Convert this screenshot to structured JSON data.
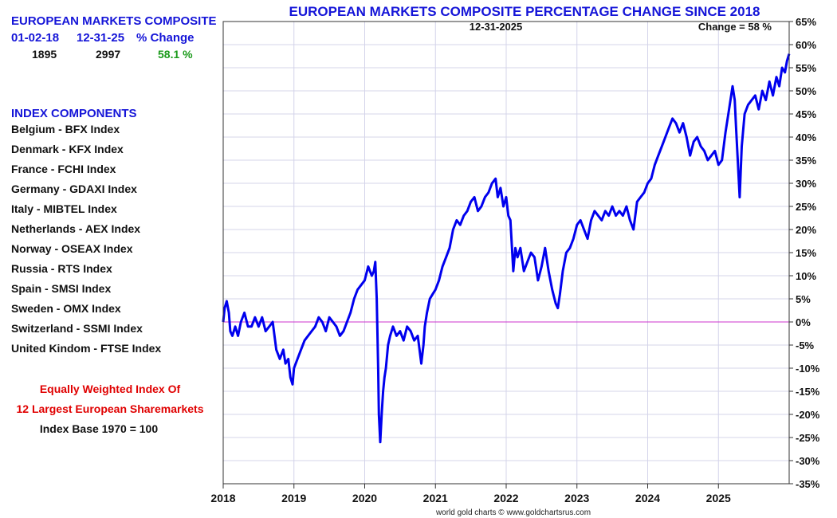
{
  "summary": {
    "title": "EUROPEAN MARKETS COMPOSITE",
    "headers": [
      "01-02-18",
      "12-31-25",
      "% Change"
    ],
    "values": [
      "1895",
      "2997",
      "58.1 %"
    ],
    "change_color": "#1a9a1a"
  },
  "components": {
    "title": "INDEX COMPONENTS",
    "items": [
      "Belgium - BFX Index",
      "Denmark - KFX Index",
      "France - FCHI Index",
      "Germany - GDAXI Index",
      "Italy - MIBTEL Index",
      "Netherlands - AEX Index",
      "Norway - OSEAX Index",
      "Russia - RTS Index",
      "Spain - SMSI Index",
      "Sweden - OMX Index",
      "Switzerland - SSMI Index",
      "United Kindom - FTSE Index"
    ]
  },
  "notes": {
    "line1": "Equally Weighted Index Of",
    "line2": "12 Largest European Sharemarkets",
    "line3": "Index Base 1970 = 100"
  },
  "chart_data": {
    "type": "line",
    "title": "EUROPEAN MARKETS COMPOSITE PERCENTAGE CHANGE SINCE 2018",
    "date_label": "12-31-2025",
    "change_label": "Change = 58 %",
    "credit": "world gold charts © www.goldchartsrus.com",
    "xlabel": "",
    "ylabel": "",
    "xlim": [
      2018.0,
      2026.0
    ],
    "ylim": [
      -35,
      65
    ],
    "x_ticks": [
      2018,
      2019,
      2020,
      2021,
      2022,
      2023,
      2024,
      2025
    ],
    "x_tick_labels": [
      "2018",
      "2019",
      "2020",
      "2021",
      "2022",
      "2023",
      "2024",
      "2025"
    ],
    "y_ticks": [
      -35,
      -30,
      -25,
      -20,
      -15,
      -10,
      -5,
      0,
      5,
      10,
      15,
      20,
      25,
      30,
      35,
      40,
      45,
      50,
      55,
      60,
      65
    ],
    "y_tick_labels": [
      "-35%",
      "-30%",
      "-25%",
      "-20%",
      "-15%",
      "-10%",
      "-5%",
      "0%",
      "5%",
      "10%",
      "15%",
      "20%",
      "25%",
      "30%",
      "35%",
      "40%",
      "45%",
      "50%",
      "55%",
      "60%",
      "65%"
    ],
    "grid": true,
    "zero_line": true,
    "line_color": "#0000ee",
    "zero_line_color": "#cc33cc",
    "series": [
      {
        "name": "European Markets Composite % Change",
        "x": [
          2018.0,
          2018.02,
          2018.05,
          2018.08,
          2018.1,
          2018.13,
          2018.17,
          2018.21,
          2018.25,
          2018.3,
          2018.35,
          2018.4,
          2018.45,
          2018.5,
          2018.55,
          2018.6,
          2018.65,
          2018.7,
          2018.75,
          2018.8,
          2018.85,
          2018.88,
          2018.92,
          2018.95,
          2018.98,
          2019.0,
          2019.05,
          2019.1,
          2019.15,
          2019.2,
          2019.25,
          2019.3,
          2019.35,
          2019.4,
          2019.45,
          2019.5,
          2019.55,
          2019.6,
          2019.65,
          2019.7,
          2019.75,
          2019.8,
          2019.85,
          2019.9,
          2019.95,
          2020.0,
          2020.05,
          2020.1,
          2020.13,
          2020.15,
          2020.17,
          2020.19,
          2020.2,
          2020.22,
          2020.24,
          2020.26,
          2020.28,
          2020.3,
          2020.33,
          2020.36,
          2020.4,
          2020.45,
          2020.5,
          2020.55,
          2020.6,
          2020.65,
          2020.7,
          2020.75,
          2020.8,
          2020.83,
          2020.85,
          2020.88,
          2020.92,
          2020.96,
          2021.0,
          2021.05,
          2021.1,
          2021.15,
          2021.2,
          2021.25,
          2021.3,
          2021.35,
          2021.4,
          2021.45,
          2021.5,
          2021.55,
          2021.6,
          2021.65,
          2021.7,
          2021.75,
          2021.8,
          2021.85,
          2021.88,
          2021.92,
          2021.96,
          2022.0,
          2022.03,
          2022.06,
          2022.1,
          2022.13,
          2022.16,
          2022.2,
          2022.25,
          2022.3,
          2022.35,
          2022.4,
          2022.45,
          2022.5,
          2022.55,
          2022.6,
          2022.65,
          2022.7,
          2022.73,
          2022.76,
          2022.8,
          2022.85,
          2022.9,
          2022.95,
          2023.0,
          2023.05,
          2023.1,
          2023.15,
          2023.2,
          2023.25,
          2023.3,
          2023.35,
          2023.4,
          2023.45,
          2023.5,
          2023.55,
          2023.6,
          2023.65,
          2023.7,
          2023.75,
          2023.8,
          2023.85,
          2023.9,
          2023.95,
          2024.0,
          2024.05,
          2024.1,
          2024.15,
          2024.2,
          2024.25,
          2024.3,
          2024.35,
          2024.4,
          2024.45,
          2024.5,
          2024.55,
          2024.6,
          2024.65,
          2024.7,
          2024.75,
          2024.8,
          2024.85,
          2024.9,
          2024.95,
          2025.0,
          2025.05,
          2025.1,
          2025.15,
          2025.2,
          2025.23,
          2025.25,
          2025.27,
          2025.3,
          2025.33,
          2025.37,
          2025.42,
          2025.47,
          2025.52,
          2025.57,
          2025.62,
          2025.67,
          2025.72,
          2025.77,
          2025.82,
          2025.86,
          2025.9,
          2025.94,
          2025.97,
          2026.0
        ],
        "values": [
          0,
          3,
          4.5,
          2,
          -2,
          -3,
          -1,
          -3,
          0,
          2,
          -1,
          -1,
          1,
          -1,
          1,
          -2,
          -1,
          0,
          -6,
          -8,
          -6,
          -9,
          -8,
          -12,
          -13.5,
          -10,
          -8,
          -6,
          -4,
          -3,
          -2,
          -1,
          1,
          0,
          -2,
          1,
          0,
          -1,
          -3,
          -2,
          0,
          2,
          5,
          7,
          8,
          9,
          12,
          10,
          11,
          13,
          5,
          -10,
          -20,
          -26,
          -20,
          -15,
          -12,
          -10,
          -5,
          -3,
          -1,
          -3,
          -2,
          -4,
          -1,
          -2,
          -4,
          -3,
          -9,
          -5,
          -1,
          2,
          5,
          6,
          7,
          9,
          12,
          14,
          16,
          20,
          22,
          21,
          23,
          24,
          26,
          27,
          24,
          25,
          27,
          28,
          30,
          31,
          27,
          29,
          25,
          27,
          23,
          22,
          11,
          16,
          14,
          16,
          11,
          13,
          15,
          14,
          9,
          12,
          16,
          11,
          7,
          4,
          3,
          6,
          11,
          15,
          16,
          18,
          21,
          22,
          20,
          18,
          22,
          24,
          23,
          22,
          24,
          23,
          25,
          23,
          24,
          23,
          25,
          22,
          20,
          26,
          27,
          28,
          30,
          31,
          34,
          36,
          38,
          40,
          42,
          44,
          43,
          41,
          43,
          40,
          36,
          39,
          40,
          38,
          37,
          35,
          36,
          37,
          34,
          35,
          41,
          46,
          51,
          48,
          42,
          36,
          27,
          38,
          45,
          47,
          48,
          49,
          46,
          50,
          48,
          52,
          49,
          53,
          51,
          55,
          54,
          56.5,
          58
        ]
      }
    ]
  }
}
